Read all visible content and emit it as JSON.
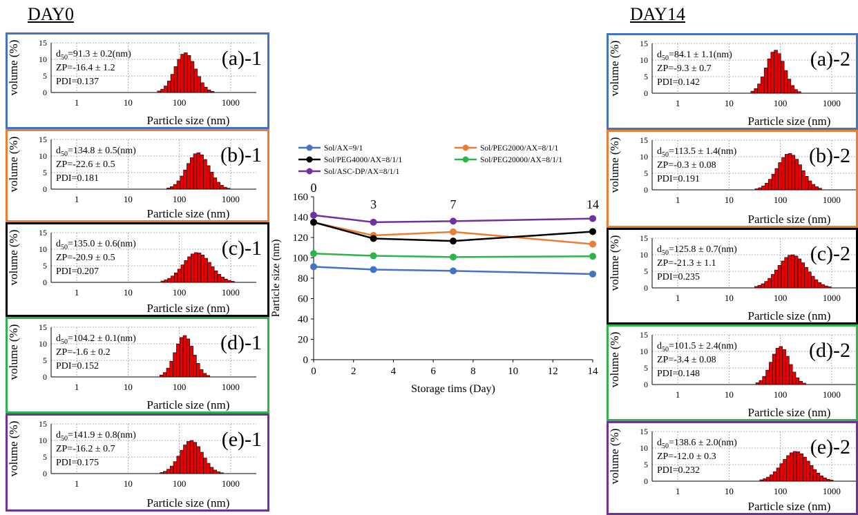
{
  "titles": {
    "day0": "DAY0",
    "day14": "DAY14"
  },
  "colors": {
    "a": "#4472c4",
    "b": "#ed7d31",
    "c": "#000000",
    "d": "#2db34a",
    "e": "#7030a0",
    "hist_fill": "#e60000"
  },
  "panels": [
    {
      "id": "a-1",
      "label": "(a)-1",
      "color_key": "a",
      "stats": [
        "d50=91.3 ± 0.2(nm)",
        "ZP=-16.4 ± 1.2",
        "PDI=0.137"
      ],
      "peak_nm": 130,
      "spread": 0.2,
      "peak_vol": 12
    },
    {
      "id": "b-1",
      "label": "(b)-1",
      "color_key": "b",
      "stats": [
        "d50=134.8 ± 0.5(nm)",
        "ZP=-22.6 ± 0.5",
        "PDI=0.181"
      ],
      "peak_nm": 230,
      "spread": 0.22,
      "peak_vol": 11
    },
    {
      "id": "c-1",
      "label": "(c)-1",
      "color_key": "c",
      "stats": [
        "d50=135.0 ± 0.6(nm)",
        "ZP=-20.9 ± 0.5",
        "PDI=0.207"
      ],
      "peak_nm": 220,
      "spread": 0.27,
      "peak_vol": 9
    },
    {
      "id": "d-1",
      "label": "(d)-1",
      "color_key": "d",
      "stats": [
        "d50=104.2 ± 0.1(nm)",
        "ZP=-1.6 ± 0.2",
        "PDI=0.152"
      ],
      "peak_nm": 125,
      "spread": 0.18,
      "peak_vol": 12.5
    },
    {
      "id": "e-1",
      "label": "(e)-1",
      "color_key": "e",
      "stats": [
        "d50=141.9 ± 0.8(nm)",
        "ZP=-16.2 ± 0.7",
        "PDI=0.175"
      ],
      "peak_nm": 170,
      "spread": 0.22,
      "peak_vol": 10
    },
    {
      "id": "a-2",
      "label": "(a)-2",
      "color_key": "a",
      "stats": [
        "d50=84.1 ± 1.1(nm)",
        "ZP=-9.3 ± 0.7",
        "PDI=0.142"
      ],
      "peak_nm": 80,
      "spread": 0.18,
      "peak_vol": 13
    },
    {
      "id": "b-2",
      "label": "(b)-2",
      "color_key": "b",
      "stats": [
        "d50=113.5 ± 1.4(nm)",
        "ZP=-0.3 ± 0.08",
        "PDI=0.191"
      ],
      "peak_nm": 150,
      "spread": 0.24,
      "peak_vol": 11
    },
    {
      "id": "c-2",
      "label": "(c)-2",
      "color_key": "c",
      "stats": [
        "d50=125.8 ± 0.7(nm)",
        "ZP=-21.3 ± 1.1",
        "PDI=0.235"
      ],
      "peak_nm": 170,
      "spread": 0.28,
      "peak_vol": 10
    },
    {
      "id": "d-2",
      "label": "(d)-2",
      "color_key": "d",
      "stats": [
        "d50=101.5 ± 2.4(nm)",
        "ZP=-3.4 ± 0.08",
        "PDI=0.148"
      ],
      "peak_nm": 100,
      "spread": 0.18,
      "peak_vol": 11.5
    },
    {
      "id": "e-2",
      "label": "(e)-2",
      "color_key": "e",
      "stats": [
        "d50=138.6 ± 2.0(nm)",
        "ZP=-12.0 ± 0.3",
        "PDI=0.232"
      ],
      "peak_nm": 200,
      "spread": 0.27,
      "peak_vol": 9
    }
  ],
  "hist_axis": {
    "ylabel": "volume (%)",
    "xlabel": "Particle size (nm)",
    "yticks": [
      "0",
      "5",
      "10",
      "15"
    ],
    "xticks": [
      "1",
      "10",
      "100",
      "1000"
    ]
  },
  "chart_data": {
    "type": "line",
    "xlabel": "Storage tims (Day)",
    "ylabel": "Particle size (nm)",
    "xlim": [
      0,
      14
    ],
    "ylim": [
      0,
      160
    ],
    "xticks": [
      0,
      2,
      4,
      6,
      8,
      10,
      12,
      14
    ],
    "yticks": [
      0,
      20,
      40,
      60,
      80,
      100,
      120,
      140,
      160
    ],
    "x": [
      0,
      3,
      7,
      14
    ],
    "day_annotations": [
      "0",
      "3",
      "7",
      "14"
    ],
    "legend_position": "top",
    "series": [
      {
        "name": "Sol/AX=9/1",
        "color": "#4472c4",
        "values": [
          91.3,
          88.5,
          87.2,
          84.1
        ]
      },
      {
        "name": "Sol/PEG2000/AX=8/1/1",
        "color": "#ed7d31",
        "values": [
          134.8,
          122.0,
          125.5,
          113.5
        ]
      },
      {
        "name": "Sol/PEG4000/AX=8/1/1",
        "color": "#000000",
        "values": [
          135.0,
          119.0,
          116.5,
          125.8
        ]
      },
      {
        "name": "Sol/PEG20000/AX=8/1/1",
        "color": "#2db34a",
        "values": [
          104.2,
          102.0,
          100.8,
          101.5
        ]
      },
      {
        "name": "Sol/ASC-DP/AX=8/1/1",
        "color": "#7030a0",
        "values": [
          141.9,
          135.0,
          136.0,
          138.6
        ]
      }
    ]
  }
}
